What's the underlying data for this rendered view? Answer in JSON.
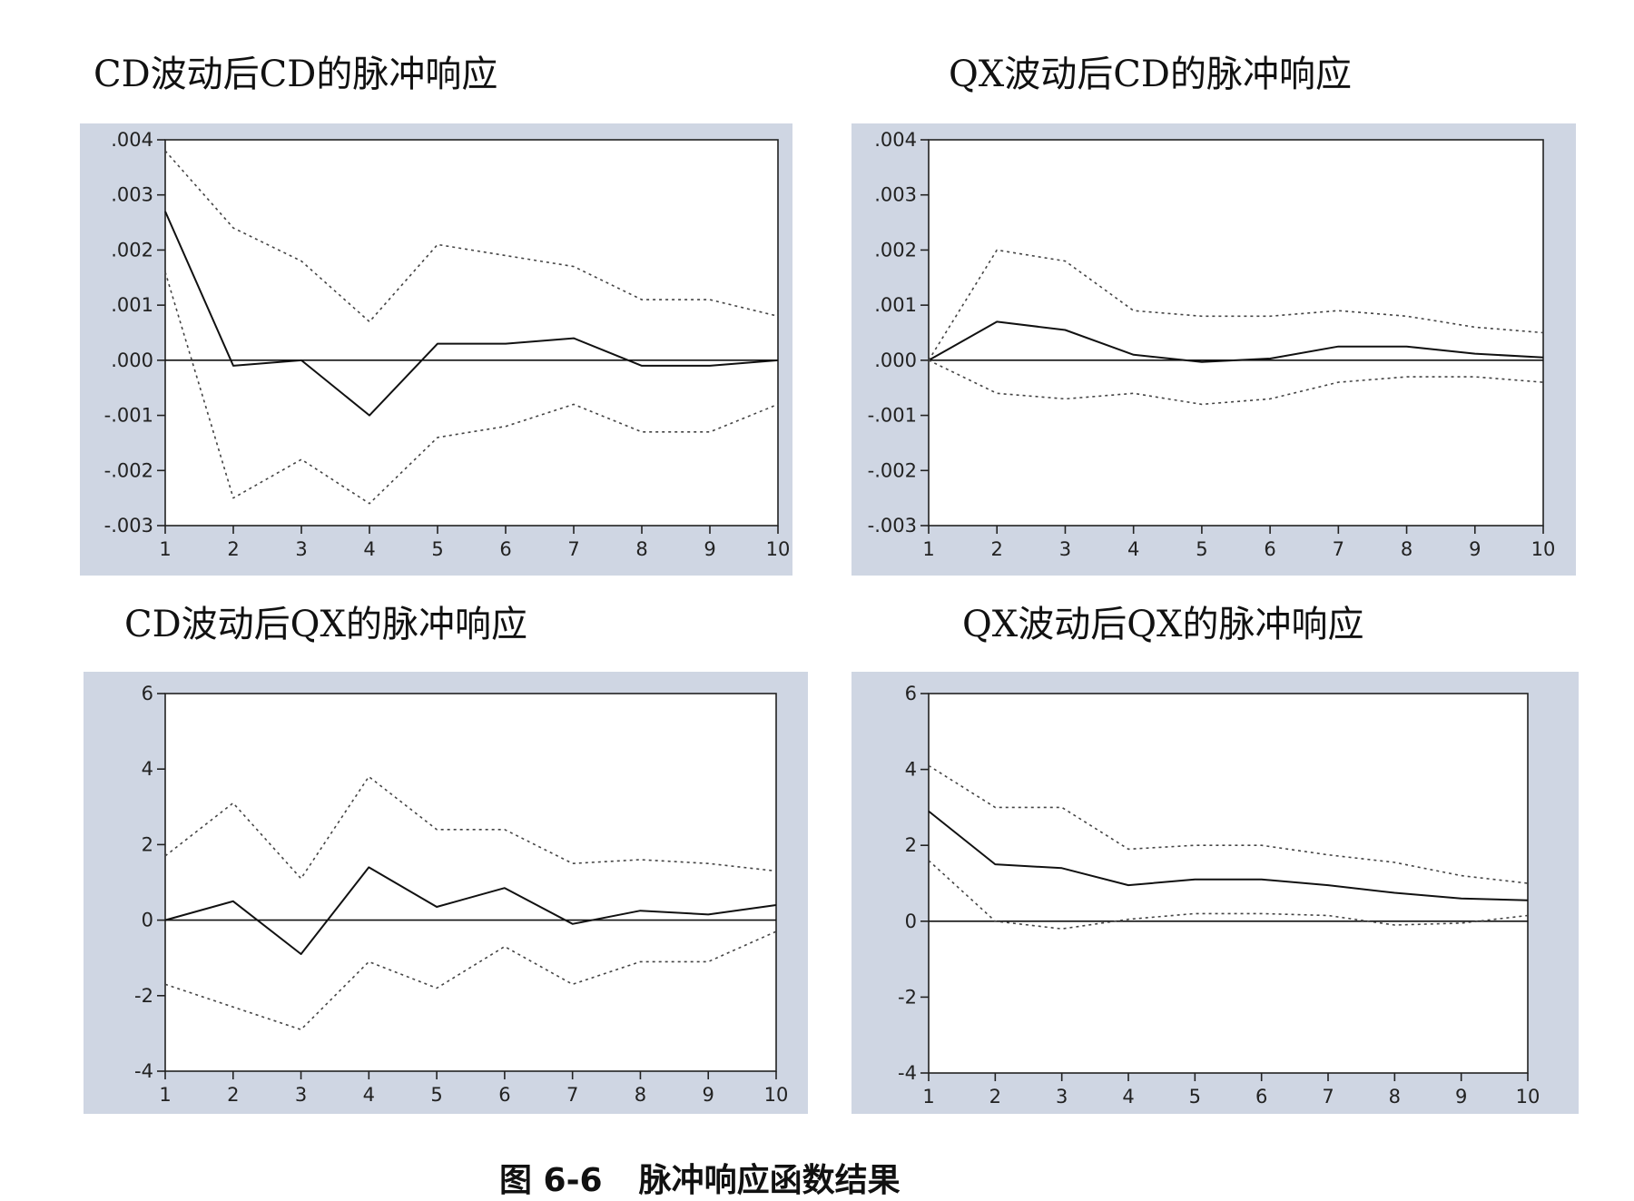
{
  "caption": {
    "figure_no": "图 6-6",
    "text": "脉冲响应函数结果"
  },
  "chart_data": [
    {
      "type": "line",
      "title": "CD波动后CD的脉冲响应",
      "x": [
        1,
        2,
        3,
        4,
        5,
        6,
        7,
        8,
        9,
        10
      ],
      "ylim": [
        -0.003,
        0.004
      ],
      "yticks": [
        -0.003,
        -0.002,
        -0.001,
        0.0,
        0.001,
        0.002,
        0.003,
        0.004
      ],
      "ytick_labels": [
        "-.003",
        "-.002",
        "-.001",
        ".000",
        ".001",
        ".002",
        ".003",
        ".004"
      ],
      "series": [
        {
          "style": "solid",
          "values": [
            0.0027,
            -0.0001,
            0.0,
            -0.001,
            0.0003,
            0.0003,
            0.0004,
            -0.0001,
            -0.0001,
            0.0
          ]
        },
        {
          "style": "dotted",
          "values": [
            0.0038,
            0.0024,
            0.0018,
            0.0007,
            0.0021,
            0.0019,
            0.0017,
            0.0011,
            0.0011,
            0.0008
          ]
        },
        {
          "style": "dotted",
          "values": [
            0.0016,
            -0.0025,
            -0.0018,
            -0.0026,
            -0.0014,
            -0.0012,
            -0.0008,
            -0.0013,
            -0.0013,
            -0.0008
          ]
        }
      ]
    },
    {
      "type": "line",
      "title": "QX波动后CD的脉冲响应",
      "x": [
        1,
        2,
        3,
        4,
        5,
        6,
        7,
        8,
        9,
        10
      ],
      "ylim": [
        -0.003,
        0.004
      ],
      "yticks": [
        -0.003,
        -0.002,
        -0.001,
        0.0,
        0.001,
        0.002,
        0.003,
        0.004
      ],
      "ytick_labels": [
        "-.003",
        "-.002",
        "-.001",
        ".000",
        ".001",
        ".002",
        ".003",
        ".004"
      ],
      "series": [
        {
          "style": "solid",
          "values": [
            0.0,
            0.0007,
            0.00055,
            0.0001,
            -3e-05,
            3e-05,
            0.00025,
            0.00025,
            0.00012,
            5e-05
          ]
        },
        {
          "style": "dotted",
          "values": [
            0.0,
            0.002,
            0.0018,
            0.0009,
            0.0008,
            0.0008,
            0.0009,
            0.0008,
            0.0006,
            0.0005
          ]
        },
        {
          "style": "dotted",
          "values": [
            0.0,
            -0.0006,
            -0.0007,
            -0.0006,
            -0.0008,
            -0.0007,
            -0.0004,
            -0.0003,
            -0.0003,
            -0.0004
          ]
        }
      ]
    },
    {
      "type": "line",
      "title": "CD波动后QX的脉冲响应",
      "x": [
        1,
        2,
        3,
        4,
        5,
        6,
        7,
        8,
        9,
        10
      ],
      "ylim": [
        -4,
        6
      ],
      "yticks": [
        -4,
        -2,
        0,
        2,
        4,
        6
      ],
      "ytick_labels": [
        "-4",
        "-2",
        "0",
        "2",
        "4",
        "6"
      ],
      "series": [
        {
          "style": "solid",
          "values": [
            0.0,
            0.5,
            -0.9,
            1.4,
            0.35,
            0.85,
            -0.1,
            0.25,
            0.15,
            0.4
          ]
        },
        {
          "style": "dotted",
          "values": [
            1.7,
            3.1,
            1.1,
            3.8,
            2.4,
            2.4,
            1.5,
            1.6,
            1.5,
            1.3
          ]
        },
        {
          "style": "dotted",
          "values": [
            -1.7,
            -2.3,
            -2.9,
            -1.1,
            -1.8,
            -0.7,
            -1.7,
            -1.1,
            -1.1,
            -0.3
          ]
        }
      ]
    },
    {
      "type": "line",
      "title": "QX波动后QX的脉冲响应",
      "x": [
        1,
        2,
        3,
        4,
        5,
        6,
        7,
        8,
        9,
        10
      ],
      "ylim": [
        -4,
        6
      ],
      "yticks": [
        -4,
        -2,
        0,
        2,
        4,
        6
      ],
      "ytick_labels": [
        "-4",
        "-2",
        "0",
        "2",
        "4",
        "6"
      ],
      "series": [
        {
          "style": "solid",
          "values": [
            2.9,
            1.5,
            1.4,
            0.95,
            1.1,
            1.1,
            0.95,
            0.75,
            0.6,
            0.55
          ]
        },
        {
          "style": "dotted",
          "values": [
            4.1,
            3.0,
            3.0,
            1.9,
            2.0,
            2.0,
            1.75,
            1.55,
            1.2,
            1.0
          ]
        },
        {
          "style": "dotted",
          "values": [
            1.6,
            0.0,
            -0.2,
            0.05,
            0.2,
            0.2,
            0.15,
            -0.1,
            -0.05,
            0.15
          ]
        }
      ]
    }
  ]
}
